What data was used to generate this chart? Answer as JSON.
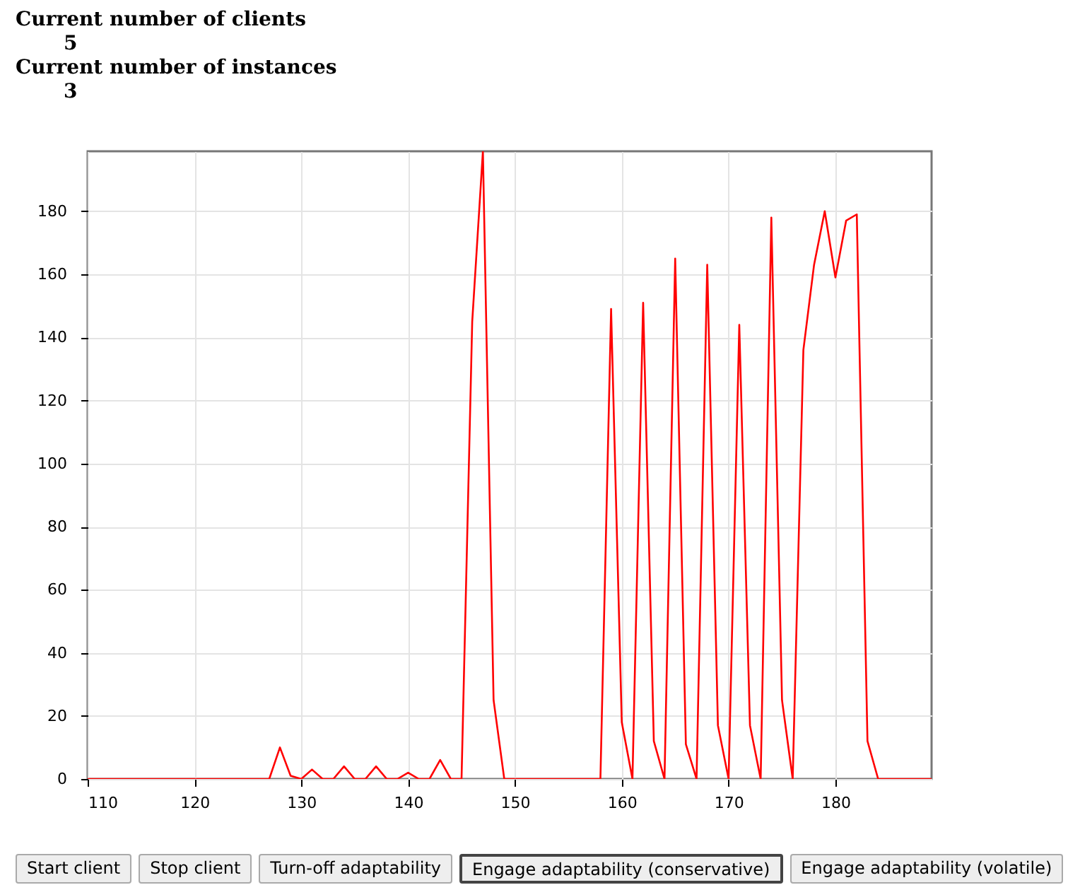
{
  "chart_data": {
    "type": "line",
    "x": [
      110,
      111,
      112,
      113,
      114,
      115,
      116,
      117,
      118,
      119,
      120,
      121,
      122,
      123,
      124,
      125,
      126,
      127,
      128,
      129,
      130,
      131,
      132,
      133,
      134,
      135,
      136,
      137,
      138,
      139,
      140,
      141,
      142,
      143,
      144,
      145,
      146,
      147,
      148,
      149,
      150,
      151,
      152,
      153,
      154,
      155,
      156,
      157,
      158,
      159,
      160,
      161,
      162,
      163,
      164,
      165,
      166,
      167,
      168,
      169,
      170,
      171,
      172,
      173,
      174,
      175,
      176,
      177,
      178,
      179,
      180,
      181,
      182,
      183,
      184,
      185,
      186,
      187,
      188,
      189
    ],
    "series": [
      {
        "color": "#ff0000",
        "values": [
          0,
          0,
          0,
          0,
          0,
          0,
          0,
          0,
          0,
          0,
          0,
          0,
          0,
          0,
          0,
          0,
          0,
          0,
          10,
          1,
          0,
          3,
          0,
          0,
          4,
          0,
          0,
          4,
          0,
          0,
          2,
          0,
          0,
          6,
          0,
          0,
          145,
          199,
          25,
          0,
          0,
          0,
          0,
          0,
          0,
          0,
          0,
          0,
          0,
          149,
          18,
          0,
          151,
          12,
          0,
          165,
          11,
          0,
          163,
          17,
          0,
          144,
          17,
          0,
          178,
          25,
          0,
          136,
          163,
          180,
          159,
          177,
          179,
          12,
          0,
          0,
          0,
          0,
          0,
          0
        ]
      }
    ],
    "xlim": [
      110,
      189
    ],
    "xticks": [
      110,
      120,
      130,
      140,
      150,
      160,
      170,
      180
    ],
    "ylim": [
      0,
      199
    ],
    "yticks": [
      0,
      20,
      40,
      60,
      80,
      100,
      120,
      140,
      160,
      180
    ],
    "grid": true,
    "marker": "none",
    "line_style": "solid",
    "annotations": [
      "Current number of clients",
      "5",
      "Current number of instances",
      "3",
      "Start client",
      "Stop client",
      "Turn-off adaptability",
      "Engage adaptability (conservative)",
      "Engage adaptability (volatile)"
    ]
  }
}
